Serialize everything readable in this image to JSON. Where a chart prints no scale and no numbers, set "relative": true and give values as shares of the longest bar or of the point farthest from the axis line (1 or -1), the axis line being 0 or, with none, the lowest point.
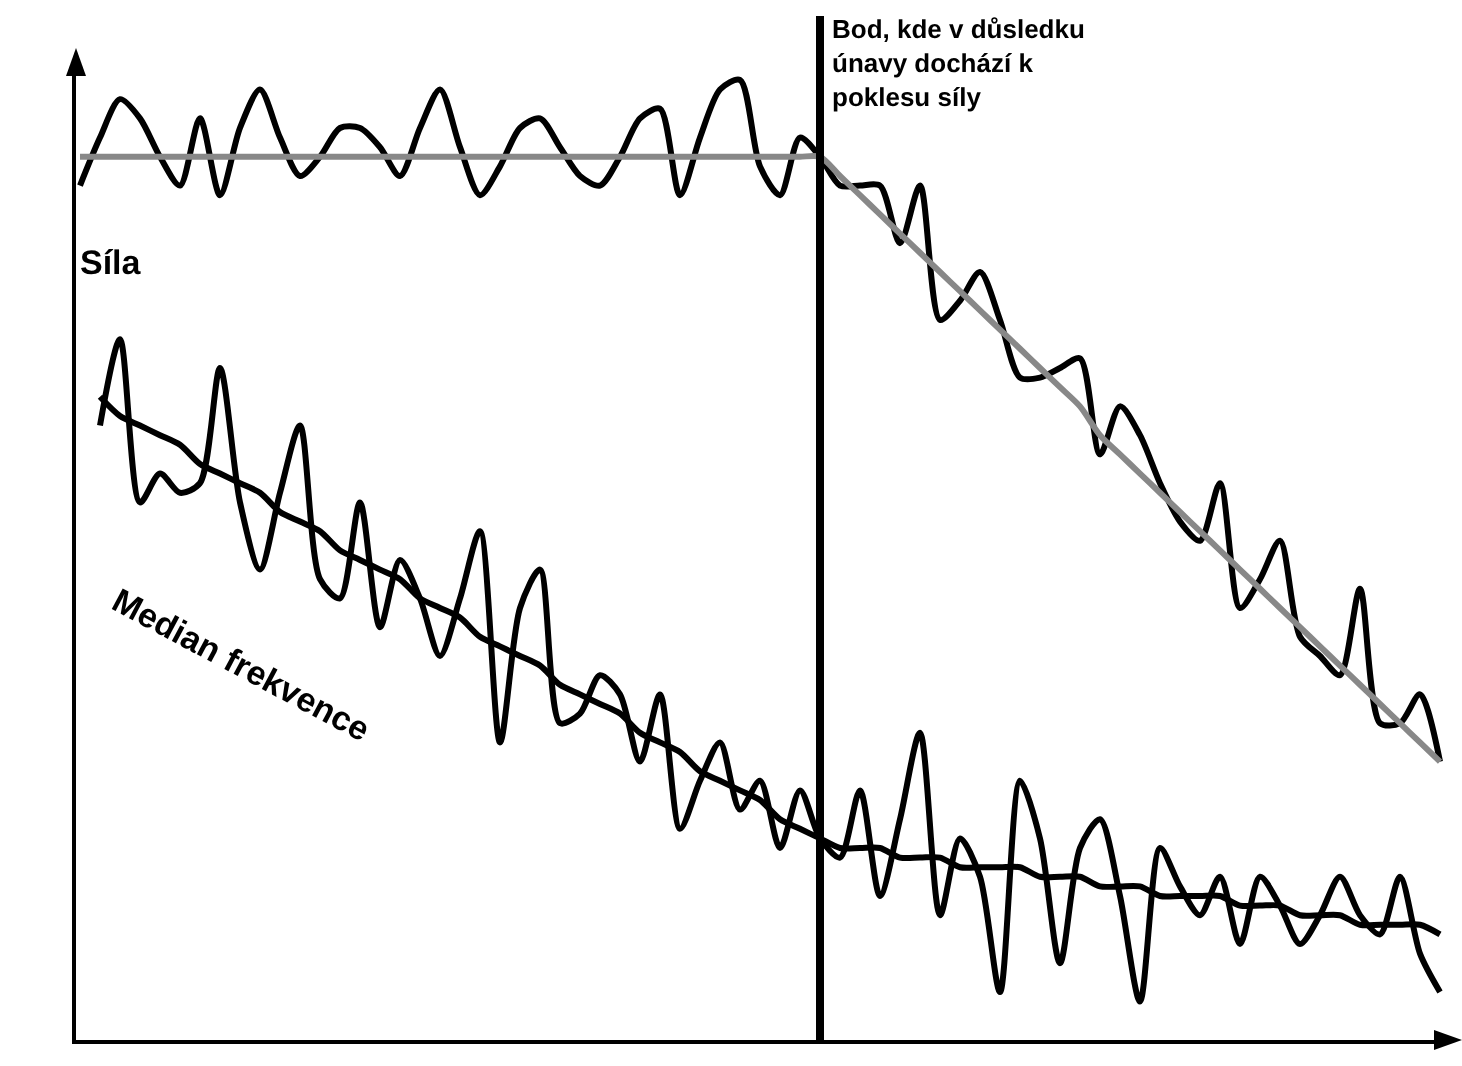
{
  "chart_data": {
    "type": "line",
    "relative": true,
    "grid": false,
    "legend": false,
    "marker": "none",
    "categories": [
      null,
      null,
      null,
      null,
      null,
      null,
      null,
      null,
      null,
      null,
      null,
      null,
      null,
      null,
      null,
      null,
      null,
      null,
      null,
      null,
      null,
      null,
      null,
      null,
      null,
      null,
      null,
      null,
      null,
      null,
      null,
      null,
      null,
      null,
      null,
      null,
      null,
      null,
      null,
      null,
      null,
      null,
      null,
      null,
      null,
      null,
      null,
      null,
      null,
      null,
      null,
      null,
      null,
      null,
      null,
      null,
      null,
      null,
      null,
      null,
      null,
      null,
      null,
      null,
      null,
      null,
      null,
      null,
      null
    ],
    "series": [
      {
        "name": "Síla",
        "color": "#000000",
        "values": [
          0.89,
          0.94,
          0.98,
          0.96,
          0.92,
          0.89,
          0.96,
          0.88,
          0.95,
          0.99,
          0.94,
          0.9,
          0.92,
          0.95,
          0.95,
          0.93,
          0.9,
          0.95,
          0.99,
          0.93,
          0.88,
          0.91,
          0.95,
          0.96,
          0.93,
          0.9,
          0.89,
          0.92,
          0.96,
          0.97,
          0.88,
          0.94,
          0.99,
          1,
          0.91,
          0.88,
          0.94,
          0.92,
          0.89,
          0.89,
          0.89,
          0.83,
          0.89,
          0.75,
          0.77,
          0.8,
          0.75,
          0.69,
          0.69,
          0.7,
          0.71,
          0.61,
          0.66,
          0.63,
          0.58,
          0.54,
          0.52,
          0.58,
          0.45,
          0.48,
          0.52,
          0.42,
          0.4,
          0.38,
          0.47,
          0.33,
          0.33,
          0.36,
          0.29
        ]
      },
      {
        "color": "#888888",
        "values": [
          0.92,
          0.92,
          0.92,
          0.92,
          0.92,
          0.92,
          0.92,
          0.92,
          0.92,
          0.92,
          0.92,
          0.92,
          0.92,
          0.92,
          0.92,
          0.92,
          0.92,
          0.92,
          0.92,
          0.92,
          0.92,
          0.92,
          0.92,
          0.92,
          0.92,
          0.92,
          0.92,
          0.92,
          0.92,
          0.92,
          0.92,
          0.92,
          0.92,
          0.92,
          0.92,
          0.92,
          0.92,
          0.92,
          0.9,
          0.88,
          0.86,
          0.84,
          0.82,
          0.8,
          0.78,
          0.76,
          0.74,
          0.72,
          0.7,
          0.68,
          0.66,
          0.63,
          0.61,
          0.59,
          0.57,
          0.55,
          0.53,
          0.51,
          0.49,
          0.47,
          0.45,
          0.43,
          0.41,
          0.39,
          0.37,
          0.35,
          0.33,
          0.31,
          0.29
        ]
      },
      {
        "name": "Median frekvence",
        "color": "#000000",
        "values": [
          null,
          0.64,
          0.73,
          0.56,
          0.59,
          0.57,
          0.58,
          0.7,
          0.56,
          0.49,
          0.57,
          0.64,
          0.48,
          0.46,
          0.56,
          0.43,
          0.5,
          0.46,
          0.4,
          0.46,
          0.53,
          0.31,
          0.45,
          0.49,
          0.33,
          0.34,
          0.38,
          0.36,
          0.29,
          0.36,
          0.22,
          0.27,
          0.31,
          0.24,
          0.27,
          0.2,
          0.26,
          0.21,
          0.19,
          0.26,
          0.15,
          0.23,
          0.32,
          0.13,
          0.21,
          0.17,
          0.05,
          0.27,
          0.21,
          0.08,
          0.2,
          0.23,
          0.15,
          0.04,
          0.2,
          0.16,
          0.13,
          0.17,
          0.1,
          0.17,
          0.14,
          0.1,
          0.13,
          0.17,
          0.13,
          0.11,
          0.17,
          0.09,
          0.05
        ]
      },
      {
        "color": "#000000",
        "values": [
          null,
          0.67,
          0.65,
          0.64,
          0.63,
          0.62,
          0.6,
          0.59,
          0.58,
          0.57,
          0.55,
          0.54,
          0.53,
          0.51,
          0.5,
          0.49,
          0.48,
          0.46,
          0.45,
          0.44,
          0.42,
          0.41,
          0.4,
          0.39,
          0.37,
          0.36,
          0.35,
          0.34,
          0.32,
          0.31,
          0.3,
          0.28,
          0.27,
          0.26,
          0.25,
          0.23,
          0.22,
          0.21,
          0.2,
          0.2,
          0.2,
          0.19,
          0.19,
          0.19,
          0.18,
          0.18,
          0.18,
          0.18,
          0.17,
          0.17,
          0.17,
          0.16,
          0.16,
          0.16,
          0.15,
          0.15,
          0.15,
          0.15,
          0.14,
          0.14,
          0.14,
          0.13,
          0.13,
          0.13,
          0.12,
          0.12,
          0.12,
          0.12,
          0.11
        ]
      }
    ],
    "annotations": [
      "Bod, kde v důsledku únavy dochází k poklesu síly"
    ]
  }
}
